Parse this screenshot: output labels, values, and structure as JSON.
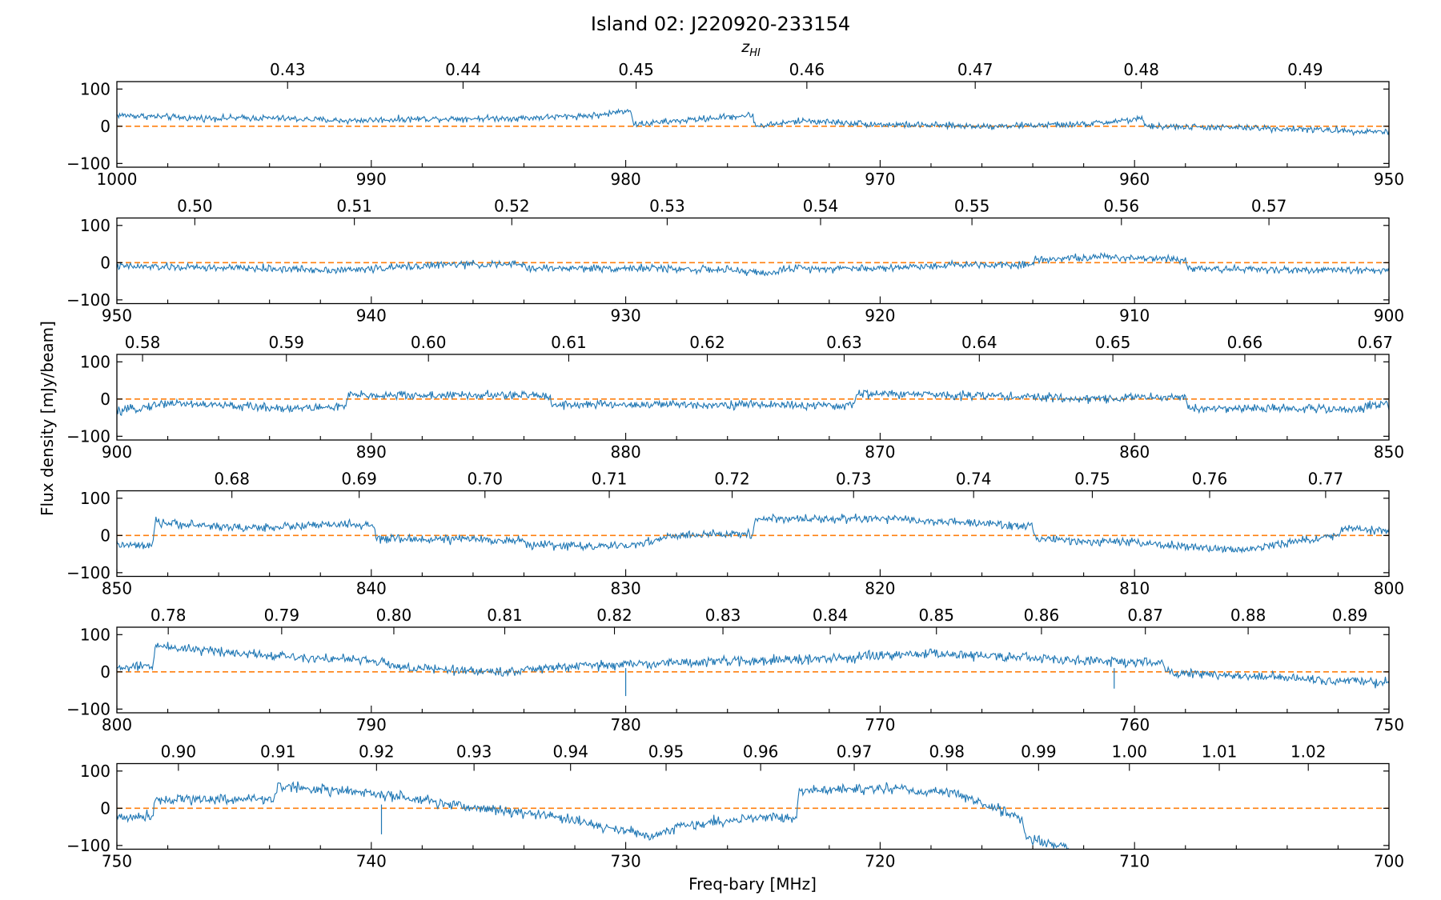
{
  "figure": {
    "title": "Island 02: J220920-233154",
    "top_axis_label": "z_HI",
    "top_axis_label_main": "z",
    "top_axis_label_sub": "HI",
    "xlabel": "Freq-bary [MHz]",
    "ylabel": "Flux density [mJy/beam]"
  },
  "colors": {
    "spectrum": "#1f77b4",
    "zero_line": "#ff7f0e",
    "axes": "#000000"
  },
  "chart_data": [
    {
      "type": "line",
      "title": "Island 02: J220920-233154",
      "xlim": [
        1000,
        950
      ],
      "ylim": [
        -110,
        120
      ],
      "yticks": [
        -100,
        0,
        100
      ],
      "ytick_labels": [
        "−100",
        "0",
        "100"
      ],
      "xticks": [
        1000,
        990,
        980,
        970,
        960,
        950
      ],
      "xtick_labels": [
        "1000",
        "990",
        "980",
        "970",
        "960",
        "950"
      ],
      "top_ticks": [
        0.43,
        0.44,
        0.45,
        0.46,
        0.47,
        0.48,
        0.49
      ],
      "top_tick_labels": [
        "0.43",
        "0.44",
        "0.45",
        "0.46",
        "0.47",
        "0.48",
        "0.49"
      ],
      "series": [
        {
          "x": [
            1000,
            997,
            994,
            991,
            988,
            984,
            981,
            979.8,
            979.7,
            976,
            975,
            974.9,
            973,
            970,
            966,
            962,
            959.7,
            959.6,
            955,
            950
          ],
          "y": [
            30,
            22,
            22,
            15,
            20,
            22,
            30,
            45,
            5,
            25,
            30,
            0,
            15,
            5,
            0,
            5,
            20,
            0,
            -5,
            -15
          ],
          "noise": 6
        }
      ],
      "hline": 0
    },
    {
      "type": "line",
      "xlim": [
        950,
        900
      ],
      "ylim": [
        -110,
        120
      ],
      "yticks": [
        -100,
        0,
        100
      ],
      "ytick_labels": [
        "−100",
        "0",
        "100"
      ],
      "xticks": [
        950,
        940,
        930,
        920,
        910,
        900
      ],
      "xtick_labels": [
        "950",
        "940",
        "930",
        "920",
        "910",
        "900"
      ],
      "top_ticks": [
        0.5,
        0.51,
        0.52,
        0.53,
        0.54,
        0.55,
        0.56,
        0.57
      ],
      "top_tick_labels": [
        "0.50",
        "0.51",
        "0.52",
        "0.53",
        "0.54",
        "0.55",
        "0.56",
        "0.57"
      ],
      "series": [
        {
          "x": [
            950,
            945,
            941,
            937,
            934,
            933.9,
            929,
            926,
            924,
            923.9,
            920,
            917,
            914,
            913.9,
            911,
            908,
            907.9,
            903,
            900
          ],
          "y": [
            -10,
            -15,
            -20,
            -5,
            -5,
            -15,
            -15,
            -20,
            -30,
            -15,
            -15,
            -5,
            -5,
            10,
            15,
            10,
            -15,
            -20,
            -20
          ],
          "noise": 7
        }
      ],
      "hline": 0
    },
    {
      "type": "line",
      "xlim": [
        900,
        850
      ],
      "ylim": [
        -110,
        120
      ],
      "yticks": [
        -100,
        0,
        100
      ],
      "ytick_labels": [
        "−100",
        "0",
        "100"
      ],
      "xticks": [
        900,
        890,
        880,
        870,
        860,
        850
      ],
      "xtick_labels": [
        "900",
        "890",
        "880",
        "870",
        "860",
        "850"
      ],
      "top_ticks": [
        0.58,
        0.59,
        0.6,
        0.61,
        0.62,
        0.63,
        0.64,
        0.65,
        0.66,
        0.67
      ],
      "top_tick_labels": [
        "0.58",
        "0.59",
        "0.60",
        "0.61",
        "0.62",
        "0.63",
        "0.64",
        "0.65",
        "0.66",
        "0.67"
      ],
      "series": [
        {
          "x": [
            900,
            898,
            895,
            893,
            891,
            890.9,
            889,
            885,
            883,
            882.9,
            878,
            874,
            872,
            871,
            870.9,
            866,
            864,
            862,
            860,
            858,
            857.9,
            853,
            851,
            850.9,
            850
          ],
          "y": [
            -35,
            -10,
            -20,
            -25,
            -20,
            10,
            10,
            10,
            10,
            -15,
            -15,
            -15,
            -20,
            -15,
            15,
            10,
            5,
            0,
            5,
            5,
            -25,
            -25,
            -30,
            -15,
            -15
          ],
          "noise": 8
        }
      ],
      "hline": 0
    },
    {
      "type": "line",
      "xlim": [
        850,
        800
      ],
      "ylim": [
        -110,
        120
      ],
      "yticks": [
        -100,
        0,
        100
      ],
      "ytick_labels": [
        "−100",
        "0",
        "100"
      ],
      "xticks": [
        850,
        840,
        830,
        820,
        810,
        800
      ],
      "xtick_labels": [
        "850",
        "840",
        "830",
        "820",
        "810",
        "800"
      ],
      "top_ticks": [
        0.68,
        0.69,
        0.7,
        0.71,
        0.72,
        0.73,
        0.74,
        0.75,
        0.76,
        0.77
      ],
      "top_tick_labels": [
        "0.68",
        "0.69",
        "0.70",
        "0.71",
        "0.72",
        "0.73",
        "0.74",
        "0.75",
        "0.76",
        "0.77"
      ],
      "series": [
        {
          "x": [
            850,
            848.6,
            848.5,
            845,
            841,
            839.9,
            839.8,
            836,
            834,
            833.9,
            830,
            828,
            825,
            824.9,
            820,
            814,
            813.9,
            810,
            806,
            802,
            801.9,
            800
          ],
          "y": [
            -25,
            -30,
            35,
            20,
            30,
            25,
            -10,
            -10,
            -15,
            -25,
            -30,
            0,
            5,
            45,
            45,
            25,
            -10,
            -20,
            -40,
            0,
            20,
            10
          ],
          "noise": 8
        }
      ],
      "hline": 0
    },
    {
      "type": "line",
      "xlim": [
        800,
        750
      ],
      "ylim": [
        -110,
        120
      ],
      "yticks": [
        -100,
        0,
        100
      ],
      "ytick_labels": [
        "−100",
        "0",
        "100"
      ],
      "xticks": [
        800,
        790,
        780,
        770,
        760,
        750
      ],
      "xtick_labels": [
        "800",
        "790",
        "780",
        "770",
        "760",
        "750"
      ],
      "top_ticks": [
        0.78,
        0.79,
        0.8,
        0.81,
        0.82,
        0.83,
        0.84,
        0.85,
        0.86,
        0.87,
        0.88,
        0.89
      ],
      "top_tick_labels": [
        "0.78",
        "0.79",
        "0.80",
        "0.81",
        "0.82",
        "0.83",
        "0.84",
        "0.85",
        "0.86",
        "0.87",
        "0.88",
        "0.89"
      ],
      "series": [
        {
          "x": [
            800,
            798.6,
            798.5,
            794,
            790,
            788.5,
            785,
            782,
            778,
            772,
            768,
            762,
            758.9,
            758.8,
            756,
            753,
            750
          ],
          "y": [
            10,
            15,
            70,
            45,
            30,
            10,
            0,
            15,
            25,
            35,
            50,
            30,
            25,
            0,
            -10,
            -20,
            -30
          ],
          "noise": 9
        }
      ],
      "hline": 0,
      "spikes": [
        {
          "x": 780.0,
          "y": -65
        },
        {
          "x": 760.8,
          "y": -45
        }
      ]
    },
    {
      "type": "line",
      "xlim": [
        750,
        700
      ],
      "ylim": [
        -110,
        120
      ],
      "yticks": [
        -100,
        0,
        100
      ],
      "ytick_labels": [
        "−100",
        "0",
        "100"
      ],
      "xticks": [
        750,
        740,
        730,
        720,
        710,
        700
      ],
      "xtick_labels": [
        "750",
        "740",
        "730",
        "720",
        "710",
        "700"
      ],
      "top_ticks": [
        0.9,
        0.91,
        0.92,
        0.93,
        0.94,
        0.95,
        0.96,
        0.97,
        0.98,
        0.99,
        1.0,
        1.01,
        1.02
      ],
      "top_tick_labels": [
        "0.90",
        "0.91",
        "0.92",
        "0.93",
        "0.94",
        "0.95",
        "0.96",
        "0.97",
        "0.98",
        "0.99",
        "1.00",
        "1.01",
        "1.02"
      ],
      "series": [
        {
          "x": [
            750,
            748.6,
            748.5,
            743.8,
            743.7,
            740,
            737,
            733,
            729,
            728,
            725,
            723.3,
            723.2,
            720,
            717,
            714.4,
            714.3,
            712.6
          ],
          "y": [
            -25,
            -20,
            25,
            25,
            60,
            40,
            10,
            -20,
            -75,
            -50,
            -25,
            -25,
            45,
            55,
            40,
            -30,
            -80,
            -105
          ],
          "noise": 10
        }
      ],
      "hline": 0,
      "spikes": [
        {
          "x": 739.6,
          "y": -70
        }
      ]
    }
  ]
}
